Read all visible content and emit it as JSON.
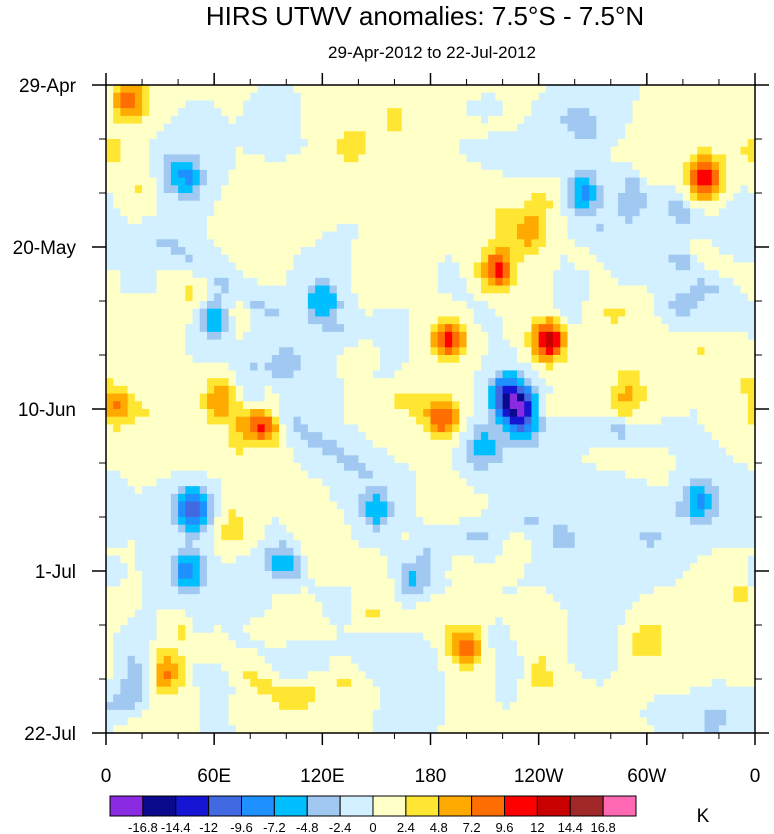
{
  "chart_data": {
    "type": "heatmap",
    "title": "HIRS UTWV anomalies: 7.5°S - 7.5°N",
    "subtitle": "29-Apr-2012 to 22-Jul-2012",
    "xlabel": "",
    "ylabel": "",
    "x_ticks": [
      "0",
      "60E",
      "120E",
      "180",
      "120W",
      "60W",
      "0"
    ],
    "y_ticks": [
      "29-Apr",
      "20-May",
      "10-Jun",
      "1-Jul",
      "22-Jul"
    ],
    "xlim": [
      0,
      360
    ],
    "ylim_days": [
      0,
      84
    ],
    "colorbar": {
      "unit": "K",
      "levels": [
        "-16.8",
        "-14.4",
        "-12",
        "-9.6",
        "-7.2",
        "-4.8",
        "-2.4",
        "0",
        "2.4",
        "4.8",
        "7.2",
        "9.6",
        "12",
        "14.4",
        "16.8"
      ],
      "colors": [
        "#8a2be2",
        "#0a0a8c",
        "#1414d2",
        "#4169e1",
        "#1e90ff",
        "#00bfff",
        "#a0c8f0",
        "#d2f0ff",
        "#ffffc8",
        "#ffe632",
        "#ffaa00",
        "#ff6e00",
        "#ff0000",
        "#c80000",
        "#a02828",
        "#ff69b4"
      ]
    },
    "hotspots": [
      {
        "lon": 332,
        "day": 12,
        "value": 12.5
      },
      {
        "lon": 190,
        "day": 33,
        "value": 11.0
      },
      {
        "lon": 217,
        "day": 24,
        "value": 10.5
      },
      {
        "lon": 245,
        "day": 33,
        "value": 12.0
      },
      {
        "lon": 87,
        "day": 44,
        "value": 10.5
      },
      {
        "lon": 187,
        "day": 43,
        "value": 9.8
      },
      {
        "lon": 63,
        "day": 41,
        "value": 7.5
      },
      {
        "lon": 13,
        "day": 2,
        "value": 9.0
      },
      {
        "lon": 235,
        "day": 19,
        "value": 6.5
      },
      {
        "lon": 230,
        "day": 42,
        "value": -14.5
      },
      {
        "lon": 222,
        "day": 40,
        "value": -11.0
      },
      {
        "lon": 48,
        "day": 55,
        "value": -12.5
      },
      {
        "lon": 45,
        "day": 63,
        "value": -8.5
      },
      {
        "lon": 60,
        "day": 30,
        "value": -8.0
      },
      {
        "lon": 120,
        "day": 28,
        "value": -7.5
      },
      {
        "lon": 265,
        "day": 14,
        "value": -8.0
      },
      {
        "lon": 210,
        "day": 47,
        "value": -7.5
      },
      {
        "lon": 45,
        "day": 12,
        "value": -7.5
      },
      {
        "lon": 330,
        "day": 54,
        "value": -7.8
      },
      {
        "lon": 200,
        "day": 73,
        "value": 7.8
      },
      {
        "lon": 35,
        "day": 76,
        "value": 6.5
      },
      {
        "lon": 5,
        "day": 42,
        "value": 6.0
      },
      {
        "lon": 137,
        "day": 8,
        "value": 5.5
      },
      {
        "lon": 150,
        "day": 55,
        "value": -6.5
      },
      {
        "lon": 100,
        "day": 62,
        "value": -6.0
      },
      {
        "lon": 170,
        "day": 64,
        "value": -6.5
      },
      {
        "lon": 290,
        "day": 40,
        "value": 5.5
      },
      {
        "lon": 300,
        "day": 72,
        "value": 5.0
      }
    ]
  }
}
